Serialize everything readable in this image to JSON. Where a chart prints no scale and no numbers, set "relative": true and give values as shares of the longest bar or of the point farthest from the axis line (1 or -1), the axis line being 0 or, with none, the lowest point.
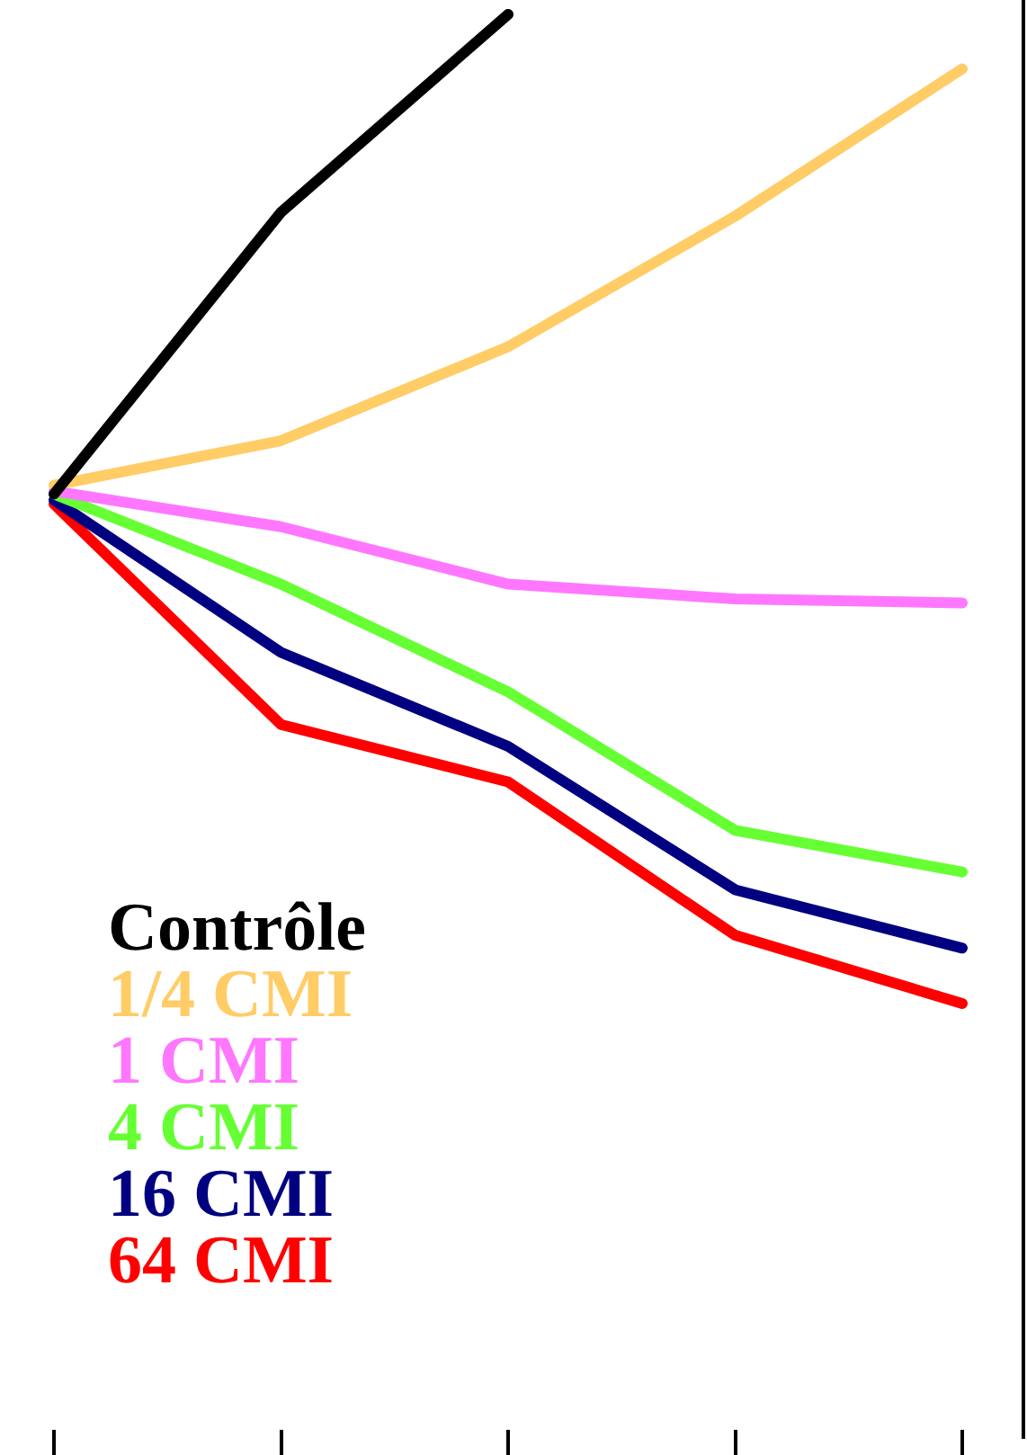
{
  "chart_data": {
    "type": "line",
    "relative": true,
    "categories": [
      null,
      null,
      null,
      null,
      null
    ],
    "legend": "bottom left",
    "marker": "none",
    "line_style": "solid",
    "grid": false,
    "series": [
      {
        "name": "Contrôle",
        "color": "#000000",
        "values": [
          0.515,
          0.8,
          1,
          null,
          null
        ]
      },
      {
        "name": "1/4 CMI",
        "color": "#ffcc66",
        "values": [
          0.524,
          0.569,
          0.664,
          0.796,
          0.945
        ]
      },
      {
        "name": "1 CMI",
        "color": "#ff77ff",
        "values": [
          0.518,
          0.482,
          0.424,
          0.409,
          0.405
        ]
      },
      {
        "name": "4 CMI",
        "color": "#66ff33",
        "values": [
          0.515,
          0.424,
          0.315,
          0.175,
          0.133
        ]
      },
      {
        "name": "16 CMI",
        "color": "#000080",
        "values": [
          0.509,
          0.355,
          0.26,
          0.115,
          0.056
        ]
      },
      {
        "name": "64 CMI",
        "color": "#ff0000",
        "values": [
          0.505,
          0.282,
          0.224,
          0.069,
          0
        ]
      }
    ]
  }
}
